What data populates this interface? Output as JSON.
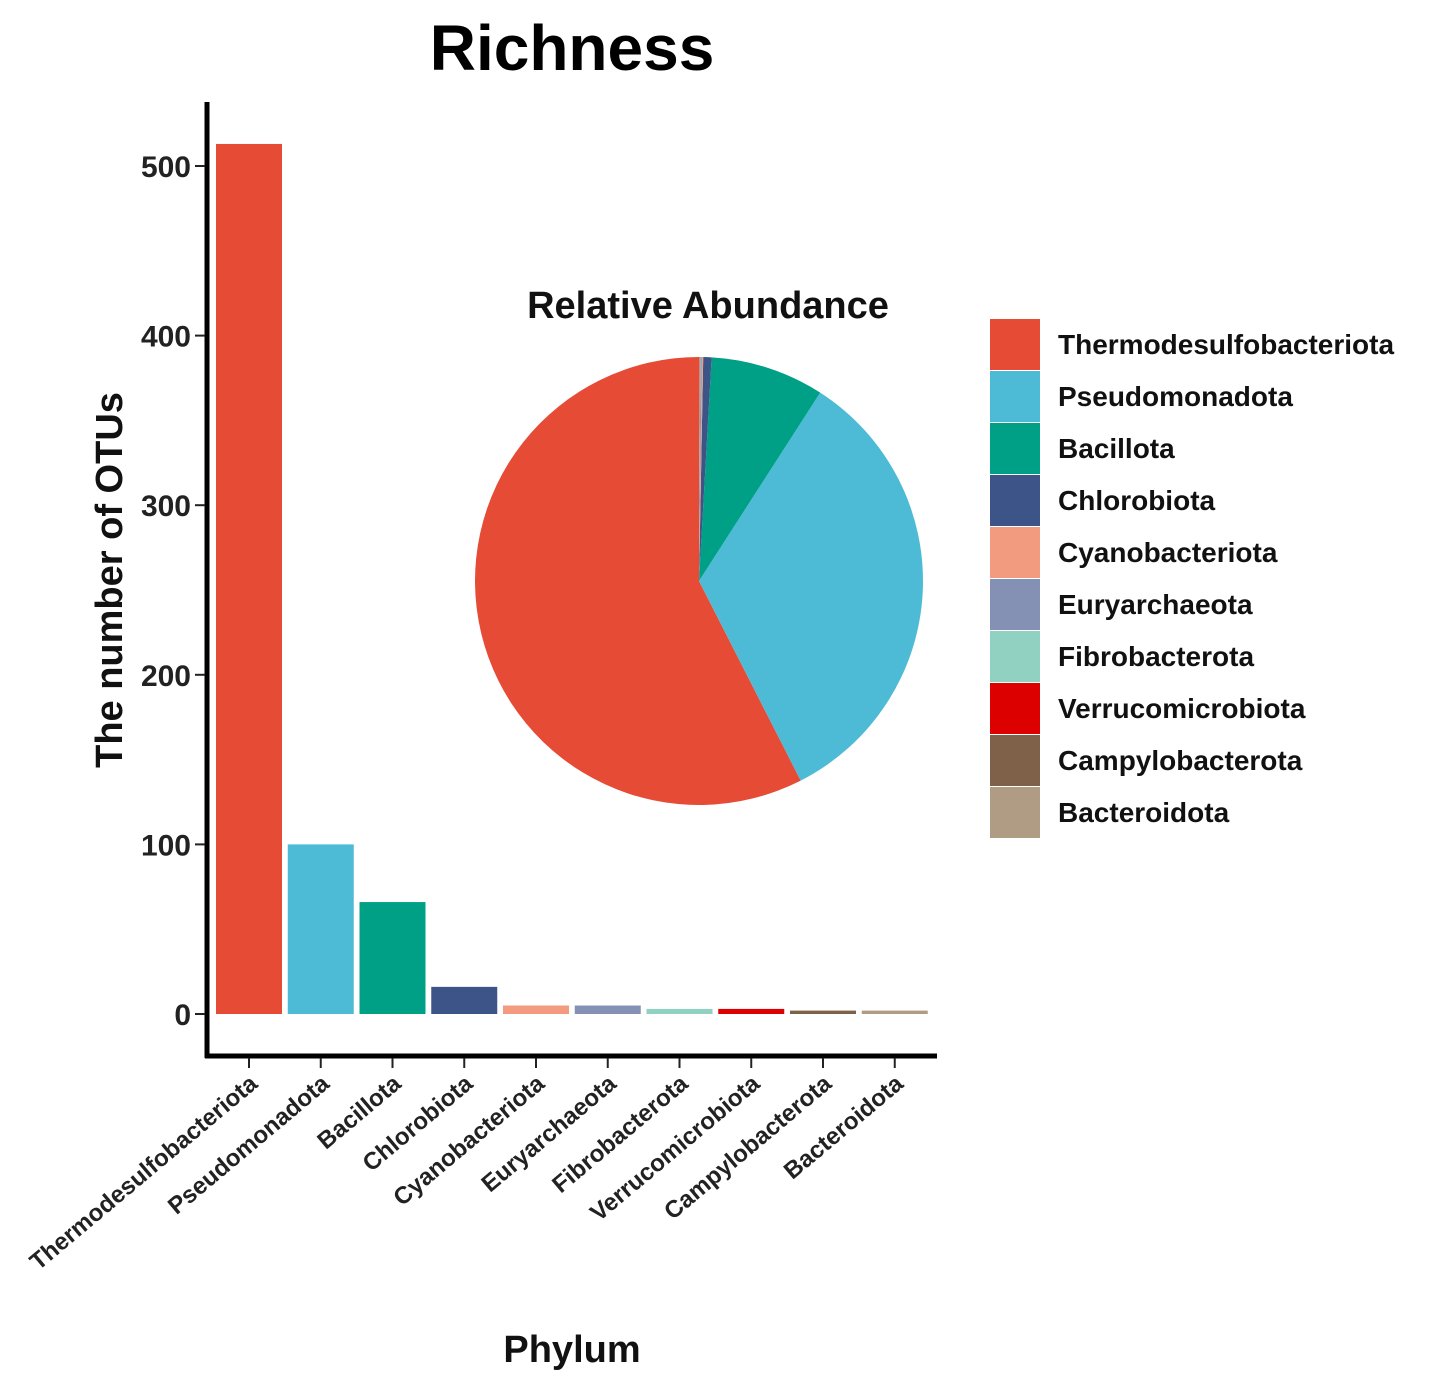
{
  "chart_data": [
    {
      "type": "bar",
      "title": "Richness",
      "xlabel": "Phylum",
      "ylabel": "The number of OTUs",
      "ylim": [
        0,
        530
      ],
      "yticks": [
        0,
        100,
        200,
        300,
        400,
        500
      ],
      "ytick_labels": [
        "0",
        "100",
        "200",
        "300",
        "400",
        "500"
      ],
      "categories": [
        "Thermodesulfobacteriota",
        "Pseudomonadota",
        "Bacillota",
        "Chlorobiota",
        "Cyanobacteriota",
        "Euryarchaeota",
        "Fibrobacterota",
        "Verrucomicrobiota",
        "Campylobacterota",
        "Bacteroidota"
      ],
      "values": [
        513,
        100,
        66,
        16,
        5,
        5,
        3,
        3,
        2,
        2
      ],
      "colors": [
        "#E64B35",
        "#4DBBD5",
        "#00A087",
        "#3C5488",
        "#F39B7F",
        "#8491B4",
        "#91D1C2",
        "#DC0000",
        "#7E6148",
        "#B09C85"
      ],
      "grid": false
    },
    {
      "type": "pie",
      "title": "Relative Abundance",
      "categories": [
        "Thermodesulfobacteriota",
        "Pseudomonadota",
        "Bacillota",
        "Chlorobiota",
        "Cyanobacteriota",
        "Euryarchaeota",
        "Fibrobacterota",
        "Verrucomicrobiota",
        "Campylobacterota",
        "Bacteroidota"
      ],
      "values": [
        57.5,
        33.4,
        8.2,
        0.6,
        0.1,
        0.1,
        0.05,
        0.03,
        0.01,
        0.01
      ],
      "colors": [
        "#E64B35",
        "#4DBBD5",
        "#00A087",
        "#3C5488",
        "#F39B7F",
        "#8491B4",
        "#91D1C2",
        "#DC0000",
        "#7E6148",
        "#B09C85"
      ],
      "start_angle_deg": 0,
      "direction": "counterclockwise"
    }
  ],
  "legend": {
    "placement": "right",
    "items": [
      {
        "label": "Thermodesulfobacteriota",
        "color": "#E64B35"
      },
      {
        "label": "Pseudomonadota",
        "color": "#4DBBD5"
      },
      {
        "label": "Bacillota",
        "color": "#00A087"
      },
      {
        "label": "Chlorobiota",
        "color": "#3C5488"
      },
      {
        "label": "Cyanobacteriota",
        "color": "#F39B7F"
      },
      {
        "label": "Euryarchaeota",
        "color": "#8491B4"
      },
      {
        "label": "Fibrobacterota",
        "color": "#91D1C2"
      },
      {
        "label": "Verrucomicrobiota",
        "color": "#DC0000"
      },
      {
        "label": "Campylobacterota",
        "color": "#7E6148"
      },
      {
        "label": "Bacteroidota",
        "color": "#B09C85"
      }
    ]
  }
}
